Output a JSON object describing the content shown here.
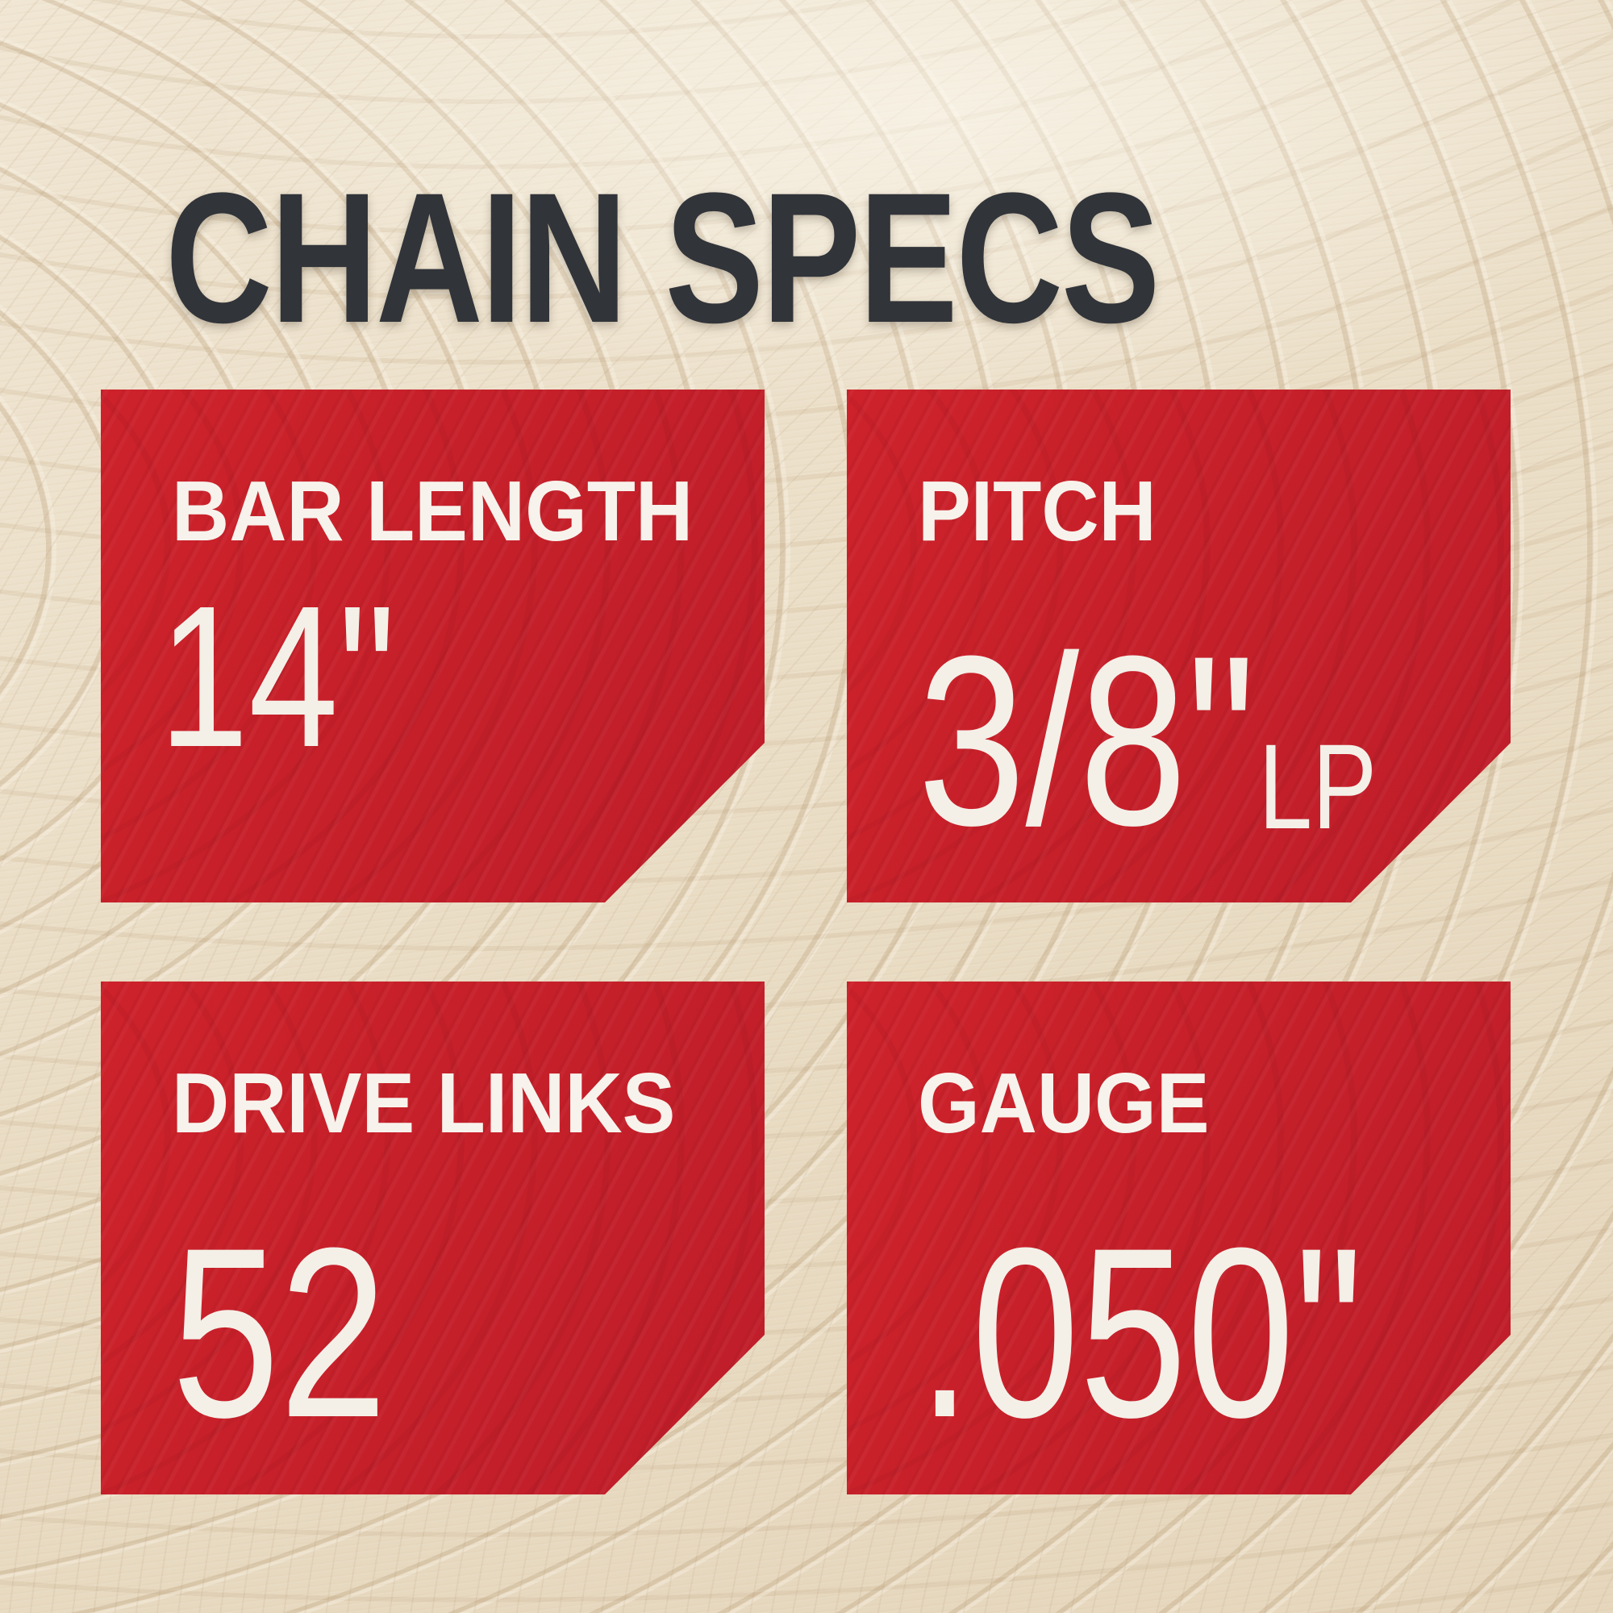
{
  "title": "CHAIN SPECS",
  "colors": {
    "card_red": "#c9202b",
    "title_charcoal": "#313439",
    "text_cream": "#f4f0e8",
    "wood_background": "#ece1cc"
  },
  "specs": [
    {
      "id": "bar-length",
      "label": "BAR LENGTH",
      "value": "14\"",
      "suffix": ""
    },
    {
      "id": "pitch",
      "label": "PITCH",
      "value": "3/8\"",
      "suffix": "LP"
    },
    {
      "id": "drive-links",
      "label": "DRIVE LINKS",
      "value": "52",
      "suffix": ""
    },
    {
      "id": "gauge",
      "label": "GAUGE",
      "value": ".050\"",
      "suffix": ""
    }
  ]
}
